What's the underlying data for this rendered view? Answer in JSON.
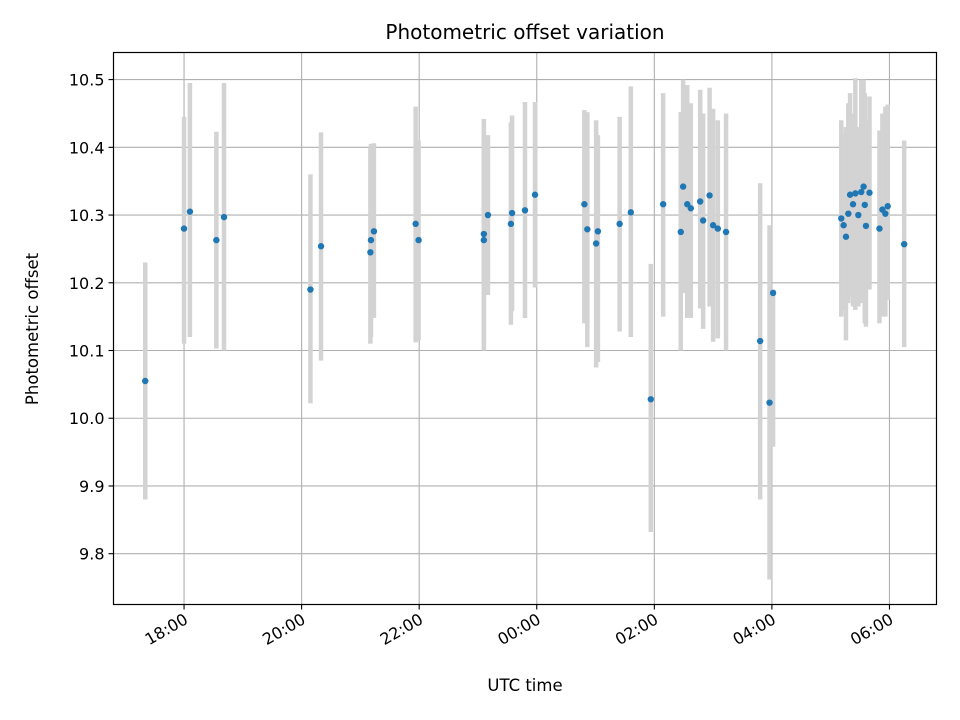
{
  "chart_data": {
    "type": "scatter",
    "title": "Photometric offset variation",
    "xlabel": "UTC time",
    "ylabel": "Photometric offset",
    "x_unit": "hours after 00:00 UTC",
    "xlim": [
      -7.2,
      6.8
    ],
    "ylim": [
      9.725,
      10.54
    ],
    "grid": true,
    "x_ticks": [
      {
        "value": -6,
        "label": "18:00"
      },
      {
        "value": -4,
        "label": "20:00"
      },
      {
        "value": -2,
        "label": "22:00"
      },
      {
        "value": 0,
        "label": "00:00"
      },
      {
        "value": 2,
        "label": "02:00"
      },
      {
        "value": 4,
        "label": "04:00"
      },
      {
        "value": 6,
        "label": "06:00"
      }
    ],
    "y_ticks": [
      {
        "value": 9.8,
        "label": "9.8"
      },
      {
        "value": 9.9,
        "label": "9.9"
      },
      {
        "value": 10.0,
        "label": "10.0"
      },
      {
        "value": 10.1,
        "label": "10.1"
      },
      {
        "value": 10.2,
        "label": "10.2"
      },
      {
        "value": 10.3,
        "label": "10.3"
      },
      {
        "value": 10.4,
        "label": "10.4"
      },
      {
        "value": 10.5,
        "label": "10.5"
      }
    ],
    "point_color": "#1f77b4",
    "errorbar_color": "#d3d3d3",
    "points": [
      {
        "x": -6.66,
        "y": 10.055,
        "lo": 9.88,
        "hi": 10.23
      },
      {
        "x": -6.0,
        "y": 10.28,
        "lo": 10.11,
        "hi": 10.445
      },
      {
        "x": -5.9,
        "y": 10.305,
        "lo": 10.12,
        "hi": 10.495
      },
      {
        "x": -5.45,
        "y": 10.263,
        "lo": 10.103,
        "hi": 10.423
      },
      {
        "x": -5.32,
        "y": 10.297,
        "lo": 10.1,
        "hi": 10.495
      },
      {
        "x": -3.85,
        "y": 10.19,
        "lo": 10.022,
        "hi": 10.36
      },
      {
        "x": -3.67,
        "y": 10.254,
        "lo": 10.085,
        "hi": 10.422
      },
      {
        "x": -2.83,
        "y": 10.245,
        "lo": 10.11,
        "hi": 10.4
      },
      {
        "x": -2.82,
        "y": 10.263,
        "lo": 10.12,
        "hi": 10.405
      },
      {
        "x": -2.77,
        "y": 10.276,
        "lo": 10.148,
        "hi": 10.406
      },
      {
        "x": -2.06,
        "y": 10.287,
        "lo": 10.112,
        "hi": 10.46
      },
      {
        "x": -2.01,
        "y": 10.263,
        "lo": 10.115,
        "hi": 10.41
      },
      {
        "x": -0.9,
        "y": 10.263,
        "lo": 10.1,
        "hi": 10.425
      },
      {
        "x": -0.9,
        "y": 10.272,
        "lo": 10.11,
        "hi": 10.442
      },
      {
        "x": -0.83,
        "y": 10.3,
        "lo": 10.182,
        "hi": 10.418
      },
      {
        "x": -0.44,
        "y": 10.287,
        "lo": 10.138,
        "hi": 10.437
      },
      {
        "x": -0.42,
        "y": 10.303,
        "lo": 10.158,
        "hi": 10.447
      },
      {
        "x": -0.2,
        "y": 10.307,
        "lo": 10.148,
        "hi": 10.467
      },
      {
        "x": -0.03,
        "y": 10.33,
        "lo": 10.193,
        "hi": 10.467
      },
      {
        "x": 0.81,
        "y": 10.316,
        "lo": 10.14,
        "hi": 10.455
      },
      {
        "x": 0.86,
        "y": 10.279,
        "lo": 10.105,
        "hi": 10.452
      },
      {
        "x": 1.01,
        "y": 10.258,
        "lo": 10.075,
        "hi": 10.44
      },
      {
        "x": 1.04,
        "y": 10.276,
        "lo": 10.083,
        "hi": 10.418
      },
      {
        "x": 1.41,
        "y": 10.287,
        "lo": 10.128,
        "hi": 10.445
      },
      {
        "x": 1.6,
        "y": 10.304,
        "lo": 10.12,
        "hi": 10.49
      },
      {
        "x": 1.94,
        "y": 10.028,
        "lo": 9.832,
        "hi": 10.228
      },
      {
        "x": 2.15,
        "y": 10.316,
        "lo": 10.15,
        "hi": 10.48
      },
      {
        "x": 2.45,
        "y": 10.275,
        "lo": 10.1,
        "hi": 10.452
      },
      {
        "x": 2.49,
        "y": 10.342,
        "lo": 10.185,
        "hi": 10.5
      },
      {
        "x": 2.56,
        "y": 10.316,
        "lo": 10.148,
        "hi": 10.492
      },
      {
        "x": 2.62,
        "y": 10.31,
        "lo": 10.148,
        "hi": 10.465
      },
      {
        "x": 2.78,
        "y": 10.32,
        "lo": 10.162,
        "hi": 10.485
      },
      {
        "x": 2.83,
        "y": 10.292,
        "lo": 10.132,
        "hi": 10.45
      },
      {
        "x": 2.94,
        "y": 10.329,
        "lo": 10.165,
        "hi": 10.488
      },
      {
        "x": 3.0,
        "y": 10.285,
        "lo": 10.113,
        "hi": 10.457
      },
      {
        "x": 3.08,
        "y": 10.28,
        "lo": 10.118,
        "hi": 10.44
      },
      {
        "x": 3.22,
        "y": 10.275,
        "lo": 10.1,
        "hi": 10.45
      },
      {
        "x": 3.8,
        "y": 10.114,
        "lo": 9.88,
        "hi": 10.347
      },
      {
        "x": 3.96,
        "y": 10.023,
        "lo": 9.762,
        "hi": 10.285
      },
      {
        "x": 4.02,
        "y": 10.185,
        "lo": 9.958,
        "hi": 10.19
      },
      {
        "x": 5.18,
        "y": 10.295,
        "lo": 10.15,
        "hi": 10.44
      },
      {
        "x": 5.22,
        "y": 10.285,
        "lo": 10.16,
        "hi": 10.42
      },
      {
        "x": 5.26,
        "y": 10.268,
        "lo": 10.115,
        "hi": 10.43
      },
      {
        "x": 5.3,
        "y": 10.302,
        "lo": 10.17,
        "hi": 10.465
      },
      {
        "x": 5.33,
        "y": 10.33,
        "lo": 10.18,
        "hi": 10.48
      },
      {
        "x": 5.38,
        "y": 10.316,
        "lo": 10.165,
        "hi": 10.45
      },
      {
        "x": 5.42,
        "y": 10.332,
        "lo": 10.16,
        "hi": 10.502
      },
      {
        "x": 5.47,
        "y": 10.3,
        "lo": 10.165,
        "hi": 10.43
      },
      {
        "x": 5.52,
        "y": 10.334,
        "lo": 10.17,
        "hi": 10.5
      },
      {
        "x": 5.56,
        "y": 10.342,
        "lo": 10.18,
        "hi": 10.5
      },
      {
        "x": 5.58,
        "y": 10.315,
        "lo": 10.14,
        "hi": 10.48
      },
      {
        "x": 5.6,
        "y": 10.284,
        "lo": 10.135,
        "hi": 10.44
      },
      {
        "x": 5.66,
        "y": 10.333,
        "lo": 10.19,
        "hi": 10.475
      },
      {
        "x": 5.83,
        "y": 10.28,
        "lo": 10.14,
        "hi": 10.425
      },
      {
        "x": 5.88,
        "y": 10.308,
        "lo": 10.15,
        "hi": 10.45
      },
      {
        "x": 5.93,
        "y": 10.302,
        "lo": 10.15,
        "hi": 10.46
      },
      {
        "x": 5.97,
        "y": 10.313,
        "lo": 10.175,
        "hi": 10.463
      },
      {
        "x": 6.25,
        "y": 10.257,
        "lo": 10.105,
        "hi": 10.41
      }
    ]
  }
}
